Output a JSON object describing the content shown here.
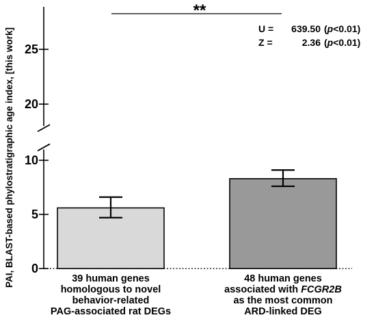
{
  "chart_data": {
    "type": "bar",
    "ylabel": "PAI, BLAST-based phylostratigraphic age index, [this work]",
    "y_axis_break": [
      11,
      18
    ],
    "ylim": [
      0,
      27
    ],
    "yticks": [
      0,
      5,
      10,
      20,
      25
    ],
    "categories": [
      [
        "39 human genes",
        "homologous to novel",
        "behavior-related",
        "PAG-associated rat DEGs"
      ],
      [
        "48 human genes",
        "associated with FCGR2B",
        "as the most common",
        "ARD-linked DEG"
      ]
    ],
    "values": [
      5.6,
      8.3
    ],
    "errors": [
      [
        4.7,
        6.6
      ],
      [
        7.6,
        9.1
      ]
    ],
    "bar_colors": [
      "#d9d9d9",
      "#999999"
    ],
    "significance": "**",
    "stats": [
      {
        "name": "U =",
        "value": "639.50",
        "p_open": "(",
        "p_italic": "p",
        "p_rest": "<0.01)"
      },
      {
        "name": "Z =",
        "value": "2.36",
        "p_open": "(",
        "p_italic": "p",
        "p_rest": "<0.01)"
      }
    ]
  }
}
